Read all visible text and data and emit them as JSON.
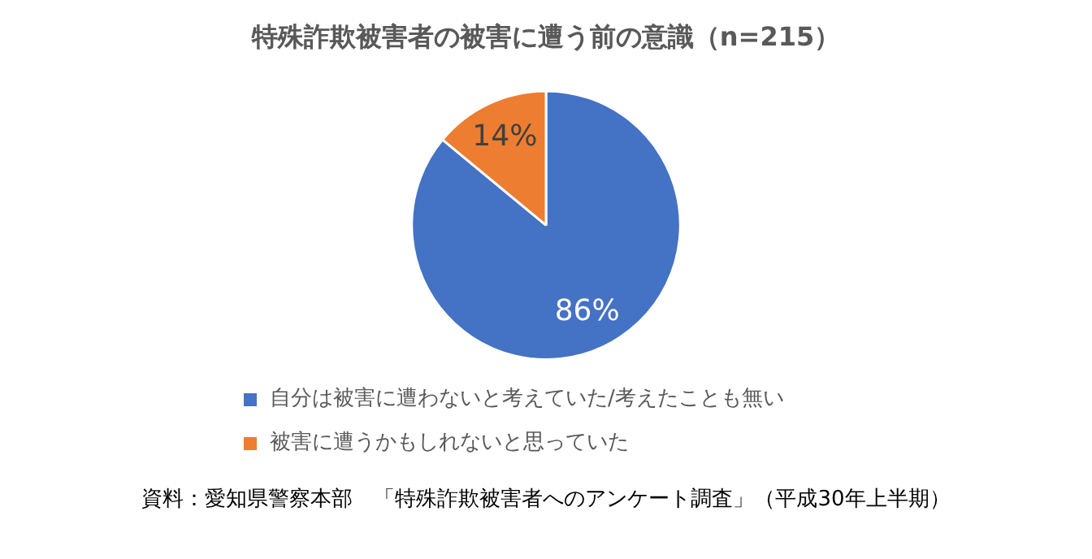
{
  "chart_data": {
    "type": "pie",
    "title": "特殊詐欺被害者の被害に遭う前の意識（n=215）",
    "categories": [
      "自分は被害に遭わないと考えていた/考えたことも無い",
      "被害に遭うかもしれないと思っていた"
    ],
    "values": [
      86,
      14
    ],
    "colors": [
      "#4472c4",
      "#ed7d31"
    ],
    "value_labels": [
      "86%",
      "14%"
    ],
    "legend": "bottom",
    "annotations": [
      "資料：愛知県警察本部　「特殊詐欺被害者へのアンケート調査」（平成30年上半期）"
    ]
  }
}
